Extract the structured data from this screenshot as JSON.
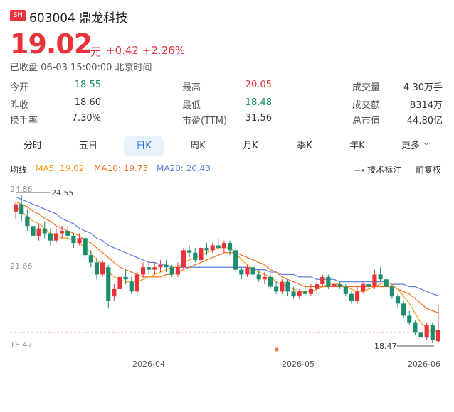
{
  "header": {
    "exchange_tag": "SH",
    "code": "603004",
    "name": "鼎龙科技",
    "price": "19.02",
    "unit": "元",
    "change": "+0.42",
    "change_pct": "+2.26%",
    "status": "已收盘 06-03 15:00:00 北京时间"
  },
  "stats": [
    {
      "label": "今开",
      "value": "18.55",
      "color": "green"
    },
    {
      "label": "最高",
      "value": "20.05",
      "color": "red"
    },
    {
      "label": "成交量",
      "value": "4.30万手",
      "color": "dark"
    },
    {
      "label": "昨收",
      "value": "18.60",
      "color": "dark"
    },
    {
      "label": "最低",
      "value": "18.48",
      "color": "green"
    },
    {
      "label": "成交额",
      "value": "8314万",
      "color": "dark"
    },
    {
      "label": "换手率",
      "value": "7.30%",
      "color": "dark"
    },
    {
      "label": "市盈(TTM)",
      "value": "31.56",
      "color": "dark"
    },
    {
      "label": "总市值",
      "value": "44.80亿",
      "color": "dark"
    }
  ],
  "tabs": [
    "分时",
    "五日",
    "日K",
    "周K",
    "月K",
    "季K",
    "年K",
    "更多"
  ],
  "active_tab": "日K",
  "ma_bar": {
    "label": "均线",
    "ma5": "MA5: 19.02",
    "ma10": "MA10: 19.73",
    "ma20": "MA20: 20.43",
    "annotate": "技术标注",
    "adjust": "前复权"
  },
  "colors": {
    "up": "#e8333b",
    "down": "#1b8c6e",
    "ma5": "#f0a020",
    "ma10": "#f07020",
    "ma20": "#5b7fd6",
    "accent": "#2b6fd6"
  },
  "chart_data": {
    "type": "candlestick",
    "y_ticks": [
      "24.86",
      "21.66",
      "18.47"
    ],
    "x_ticks": [
      "2026-04",
      "2026-05",
      "2026-06"
    ],
    "ylim": [
      18.47,
      24.86
    ],
    "max_label": "24.55",
    "min_label": "18.47",
    "candles": [
      [
        23.9,
        24.2,
        24.3,
        23.6
      ],
      [
        24.2,
        23.8,
        24.55,
        23.5
      ],
      [
        23.7,
        23.3,
        24.0,
        23.1
      ],
      [
        23.3,
        22.9,
        23.6,
        22.8
      ],
      [
        22.9,
        23.2,
        23.4,
        22.7
      ],
      [
        23.2,
        23.0,
        23.5,
        22.8
      ],
      [
        23.0,
        22.7,
        23.2,
        22.5
      ],
      [
        22.7,
        23.0,
        23.2,
        22.6
      ],
      [
        23.0,
        23.1,
        23.3,
        22.8
      ],
      [
        23.1,
        22.9,
        23.3,
        22.7
      ],
      [
        22.9,
        22.6,
        23.0,
        22.4
      ],
      [
        22.6,
        22.8,
        23.0,
        22.5
      ],
      [
        22.8,
        22.1,
        22.9,
        22.0
      ],
      [
        22.1,
        21.8,
        22.3,
        21.6
      ],
      [
        21.8,
        21.3,
        22.0,
        21.1
      ],
      [
        21.3,
        21.8,
        21.9,
        21.2
      ],
      [
        21.6,
        20.2,
        21.7,
        19.9
      ],
      [
        20.4,
        20.7,
        20.9,
        20.2
      ],
      [
        20.7,
        21.2,
        21.4,
        20.6
      ],
      [
        21.2,
        21.1,
        21.5,
        20.9
      ],
      [
        21.0,
        20.6,
        21.2,
        20.5
      ],
      [
        20.6,
        21.3,
        21.4,
        20.5
      ],
      [
        21.3,
        21.6,
        21.8,
        21.2
      ],
      [
        21.6,
        21.5,
        21.8,
        21.3
      ],
      [
        21.5,
        21.6,
        21.8,
        21.3
      ],
      [
        21.6,
        21.7,
        21.9,
        21.4
      ],
      [
        21.7,
        21.6,
        21.9,
        21.4
      ],
      [
        21.6,
        21.3,
        21.7,
        21.2
      ],
      [
        21.3,
        21.6,
        21.8,
        21.2
      ],
      [
        21.6,
        22.3,
        22.4,
        21.5
      ],
      [
        22.3,
        22.2,
        22.5,
        22.0
      ],
      [
        22.2,
        21.9,
        22.4,
        21.8
      ],
      [
        21.9,
        22.4,
        22.5,
        21.8
      ],
      [
        22.4,
        22.3,
        22.6,
        22.1
      ],
      [
        22.3,
        22.5,
        22.6,
        22.2
      ],
      [
        22.5,
        22.4,
        22.8,
        22.3
      ],
      [
        22.4,
        22.6,
        22.7,
        22.2
      ],
      [
        22.6,
        22.3,
        22.7,
        22.1
      ],
      [
        22.3,
        21.5,
        22.4,
        21.4
      ],
      [
        21.5,
        21.3,
        21.6,
        21.1
      ],
      [
        21.3,
        21.6,
        21.7,
        21.2
      ],
      [
        21.6,
        21.3,
        21.7,
        21.2
      ],
      [
        21.3,
        21.1,
        21.5,
        21.0
      ],
      [
        21.1,
        21.2,
        21.4,
        20.9
      ],
      [
        21.2,
        20.8,
        21.3,
        20.7
      ],
      [
        20.8,
        20.6,
        21.0,
        20.5
      ],
      [
        20.6,
        21.0,
        21.1,
        20.5
      ],
      [
        21.0,
        20.6,
        21.1,
        20.4
      ],
      [
        20.6,
        20.4,
        20.8,
        20.3
      ],
      [
        20.4,
        20.6,
        20.7,
        20.3
      ],
      [
        20.6,
        20.5,
        20.8,
        20.4
      ],
      [
        20.5,
        20.7,
        20.9,
        20.4
      ],
      [
        20.7,
        20.9,
        21.0,
        20.6
      ],
      [
        20.9,
        21.2,
        21.3,
        20.8
      ],
      [
        21.2,
        20.8,
        21.3,
        20.7
      ],
      [
        20.8,
        20.9,
        21.0,
        20.7
      ],
      [
        20.9,
        20.8,
        21.0,
        20.7
      ],
      [
        20.8,
        20.5,
        20.9,
        20.4
      ],
      [
        20.5,
        20.2,
        20.6,
        20.1
      ],
      [
        20.2,
        20.6,
        20.8,
        20.1
      ],
      [
        20.6,
        20.9,
        21.0,
        20.5
      ],
      [
        20.9,
        20.8,
        21.1,
        20.7
      ],
      [
        20.8,
        21.3,
        21.5,
        20.7
      ],
      [
        21.3,
        21.1,
        21.6,
        21.0
      ],
      [
        21.1,
        20.8,
        21.2,
        20.7
      ],
      [
        20.8,
        20.4,
        20.9,
        20.3
      ],
      [
        20.4,
        20.1,
        20.5,
        19.9
      ],
      [
        20.1,
        19.6,
        20.2,
        19.5
      ],
      [
        19.6,
        19.3,
        19.8,
        19.2
      ],
      [
        19.3,
        18.9,
        19.4,
        18.8
      ],
      [
        18.9,
        18.7,
        19.1,
        18.6
      ],
      [
        18.7,
        19.2,
        19.3,
        18.6
      ],
      [
        19.2,
        18.6,
        19.3,
        18.47
      ],
      [
        18.55,
        19.02,
        20.05,
        18.48
      ]
    ],
    "ma5": [
      24.1,
      23.9,
      23.7,
      23.5,
      23.4,
      23.2,
      23.0,
      22.9,
      22.8,
      22.8,
      22.7,
      22.6,
      22.4,
      22.2,
      21.9,
      21.7,
      21.4,
      21.2,
      21.1,
      21.0,
      21.0,
      21.0,
      21.1,
      21.2,
      21.3,
      21.4,
      21.5,
      21.6,
      21.6,
      21.8,
      21.9,
      22.0,
      22.1,
      22.2,
      22.3,
      22.4,
      22.4,
      22.4,
      22.2,
      21.9,
      21.7,
      21.5,
      21.4,
      21.3,
      21.2,
      21.0,
      20.9,
      20.8,
      20.7,
      20.6,
      20.6,
      20.6,
      20.7,
      20.8,
      20.9,
      20.9,
      20.9,
      20.8,
      20.7,
      20.6,
      20.6,
      20.7,
      20.8,
      20.9,
      21.0,
      20.9,
      20.7,
      20.4,
      20.1,
      19.7,
      19.3,
      19.1,
      18.9,
      19.02
    ],
    "ma10": [
      24.3,
      24.2,
      24.1,
      23.9,
      23.8,
      23.6,
      23.5,
      23.3,
      23.2,
      23.1,
      23.0,
      22.9,
      22.7,
      22.6,
      22.4,
      22.2,
      22.0,
      21.8,
      21.6,
      21.5,
      21.4,
      21.3,
      21.2,
      21.2,
      21.2,
      21.2,
      21.3,
      21.3,
      21.4,
      21.5,
      21.6,
      21.7,
      21.8,
      21.9,
      22.0,
      22.1,
      22.2,
      22.2,
      22.2,
      22.1,
      22.0,
      21.9,
      21.8,
      21.7,
      21.5,
      21.4,
      21.2,
      21.1,
      21.0,
      20.9,
      20.8,
      20.8,
      20.8,
      20.8,
      20.8,
      20.8,
      20.8,
      20.8,
      20.8,
      20.8,
      20.8,
      20.8,
      20.8,
      20.8,
      20.8,
      20.8,
      20.7,
      20.6,
      20.5,
      20.3,
      20.1,
      19.9,
      19.8,
      19.73
    ],
    "ma20": [
      24.5,
      24.4,
      24.3,
      24.2,
      24.1,
      24.0,
      23.9,
      23.8,
      23.6,
      23.5,
      23.4,
      23.2,
      23.1,
      23.0,
      22.8,
      22.7,
      22.5,
      22.4,
      22.3,
      22.2,
      22.1,
      22.0,
      21.9,
      21.8,
      21.8,
      21.7,
      21.7,
      21.6,
      21.6,
      21.6,
      21.6,
      21.6,
      21.6,
      21.6,
      21.6,
      21.6,
      21.6,
      21.6,
      21.6,
      21.6,
      21.6,
      21.5,
      21.5,
      21.5,
      21.4,
      21.4,
      21.3,
      21.3,
      21.3,
      21.2,
      21.2,
      21.2,
      21.1,
      21.1,
      21.1,
      21.1,
      21.0,
      21.0,
      21.0,
      21.0,
      21.0,
      21.0,
      21.0,
      21.0,
      21.0,
      20.9,
      20.9,
      20.9,
      20.8,
      20.8,
      20.7,
      20.6,
      20.5,
      20.43
    ]
  }
}
